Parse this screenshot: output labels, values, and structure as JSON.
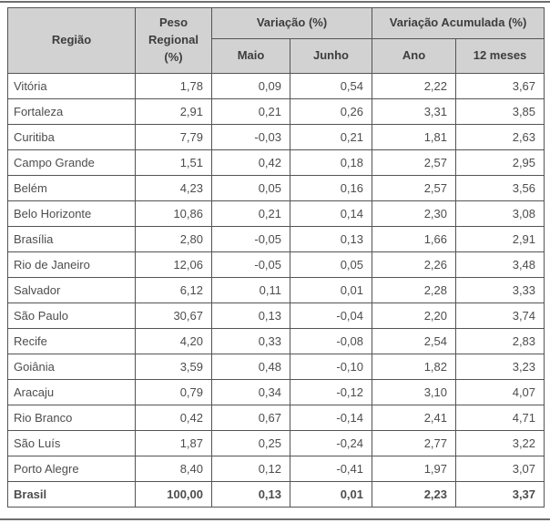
{
  "chart_data": {
    "type": "table",
    "header": {
      "region_label": "Região",
      "regional_weight_label": "Peso Regional (%)",
      "variation_group_label": "Variação (%)",
      "accumulated_group_label": "Variação Acumulada (%)",
      "subcolumns": {
        "may": "Maio",
        "june": "Junho",
        "year": "Ano",
        "twelve_months": "12 meses"
      }
    },
    "rows": [
      {
        "region": "Vitória",
        "weight": "1,78",
        "may": "0,09",
        "june": "0,54",
        "year": "2,22",
        "twelve_months": "3,67",
        "bold": false
      },
      {
        "region": "Fortaleza",
        "weight": "2,91",
        "may": "0,21",
        "june": "0,26",
        "year": "3,31",
        "twelve_months": "3,85",
        "bold": false
      },
      {
        "region": "Curitiba",
        "weight": "7,79",
        "may": "-0,03",
        "june": "0,21",
        "year": "1,81",
        "twelve_months": "2,63",
        "bold": false
      },
      {
        "region": "Campo Grande",
        "weight": "1,51",
        "may": "0,42",
        "june": "0,18",
        "year": "2,57",
        "twelve_months": "2,95",
        "bold": false
      },
      {
        "region": "Belém",
        "weight": "4,23",
        "may": "0,05",
        "june": "0,16",
        "year": "2,57",
        "twelve_months": "3,56",
        "bold": false
      },
      {
        "region": "Belo Horizonte",
        "weight": "10,86",
        "may": "0,21",
        "june": "0,14",
        "year": "2,30",
        "twelve_months": "3,08",
        "bold": false
      },
      {
        "region": "Brasília",
        "weight": "2,80",
        "may": "-0,05",
        "june": "0,13",
        "year": "1,66",
        "twelve_months": "2,91",
        "bold": false
      },
      {
        "region": "Rio de Janeiro",
        "weight": "12,06",
        "may": "-0,05",
        "june": "0,05",
        "year": "2,26",
        "twelve_months": "3,48",
        "bold": false
      },
      {
        "region": "Salvador",
        "weight": "6,12",
        "may": "0,11",
        "june": "0,01",
        "year": "2,28",
        "twelve_months": "3,33",
        "bold": false
      },
      {
        "region": "São Paulo",
        "weight": "30,67",
        "may": "0,13",
        "june": "-0,04",
        "year": "2,20",
        "twelve_months": "3,74",
        "bold": false
      },
      {
        "region": "Recife",
        "weight": "4,20",
        "may": "0,33",
        "june": "-0,08",
        "year": "2,54",
        "twelve_months": "2,83",
        "bold": false
      },
      {
        "region": "Goiânia",
        "weight": "3,59",
        "may": "0,48",
        "june": "-0,10",
        "year": "1,82",
        "twelve_months": "3,23",
        "bold": false
      },
      {
        "region": "Aracaju",
        "weight": "0,79",
        "may": "0,34",
        "june": "-0,12",
        "year": "3,10",
        "twelve_months": "4,07",
        "bold": false
      },
      {
        "region": "Rio Branco",
        "weight": "0,42",
        "may": "0,67",
        "june": "-0,14",
        "year": "2,41",
        "twelve_months": "4,71",
        "bold": false
      },
      {
        "region": "São Luís",
        "weight": "1,87",
        "may": "0,25",
        "june": "-0,24",
        "year": "2,77",
        "twelve_months": "3,22",
        "bold": false
      },
      {
        "region": "Porto Alegre",
        "weight": "8,40",
        "may": "0,12",
        "june": "-0,41",
        "year": "1,97",
        "twelve_months": "3,07",
        "bold": false
      },
      {
        "region": "Brasil",
        "weight": "100,00",
        "may": "0,13",
        "june": "0,01",
        "year": "2,23",
        "twelve_months": "3,37",
        "bold": true
      }
    ]
  },
  "colors": {
    "header_bg": "#d2d2d2",
    "border": "#545454",
    "header_text": "#3d3d3d",
    "cell_text": "#4d4d4d",
    "rule": "#6e6e6e"
  }
}
